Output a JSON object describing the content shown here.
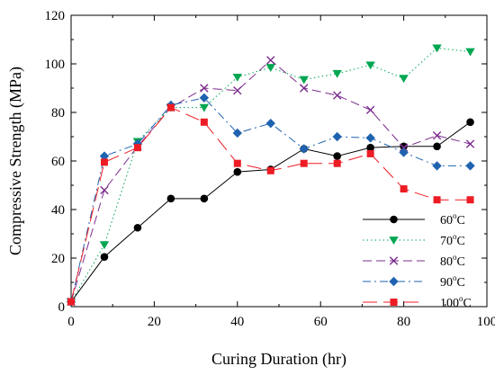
{
  "chart_data": {
    "type": "line",
    "title": "",
    "xlabel": "Curing Duration (hr)",
    "ylabel": "Compressive Strength (MPa)",
    "xlim": [
      0,
      100
    ],
    "ylim": [
      0,
      120
    ],
    "xticks": [
      0,
      20,
      40,
      60,
      80,
      100
    ],
    "yticks": [
      0,
      20,
      40,
      60,
      80,
      100,
      120
    ],
    "grid": false,
    "legend_position": "bottom-right",
    "series": [
      {
        "name": "60°C",
        "label_main": "60",
        "label_sup": "o",
        "label_unit": "C",
        "color": "#000000",
        "marker": "circle",
        "line": "solid",
        "x": [
          0,
          8,
          16,
          24,
          32,
          40,
          48,
          56,
          64,
          72,
          80,
          88,
          96
        ],
        "y": [
          2,
          20.5,
          32.5,
          44.5,
          44.5,
          55.5,
          56.5,
          65,
          62,
          65.5,
          66,
          66,
          76
        ]
      },
      {
        "name": "70°C",
        "label_main": "70",
        "label_sup": "o",
        "label_unit": "C",
        "color": "#00a651",
        "marker": "triangle-down",
        "line": "dotted",
        "x": [
          0,
          8,
          16,
          24,
          32,
          40,
          48,
          56,
          64,
          72,
          80,
          88,
          96
        ],
        "y": [
          2,
          25.5,
          68,
          82,
          82,
          94.5,
          98.5,
          93.5,
          96,
          99.5,
          94,
          106.5,
          105
        ]
      },
      {
        "name": "80°C",
        "label_main": "80",
        "label_sup": "o",
        "label_unit": "C",
        "color": "#7b2d8e",
        "marker": "x",
        "line": "dashed",
        "x": [
          0,
          8,
          16,
          24,
          32,
          40,
          48,
          56,
          64,
          72,
          80,
          88,
          96
        ],
        "y": [
          2,
          48,
          66,
          82,
          90,
          89,
          101.5,
          90,
          87,
          81,
          65.5,
          70.5,
          67
        ]
      },
      {
        "name": "90°C",
        "label_main": "90",
        "label_sup": "o",
        "label_unit": "C",
        "color": "#1f63b0",
        "marker": "diamond",
        "line": "dashdot",
        "x": [
          0,
          8,
          16,
          24,
          32,
          40,
          48,
          56,
          64,
          72,
          80,
          88,
          96
        ],
        "y": [
          2,
          62,
          67,
          83,
          86,
          71.5,
          75.5,
          65,
          70,
          69.5,
          63.5,
          58,
          58
        ]
      },
      {
        "name": "100°C",
        "label_main": "100",
        "label_sup": "o",
        "label_unit": "C",
        "color": "#ed1c24",
        "marker": "square",
        "line": "longdash",
        "x": [
          0,
          8,
          16,
          24,
          32,
          40,
          48,
          56,
          64,
          72,
          80,
          88,
          96
        ],
        "y": [
          2,
          59.5,
          65.5,
          82,
          76,
          59,
          56,
          59,
          59,
          63,
          48.5,
          44,
          44
        ]
      }
    ]
  }
}
